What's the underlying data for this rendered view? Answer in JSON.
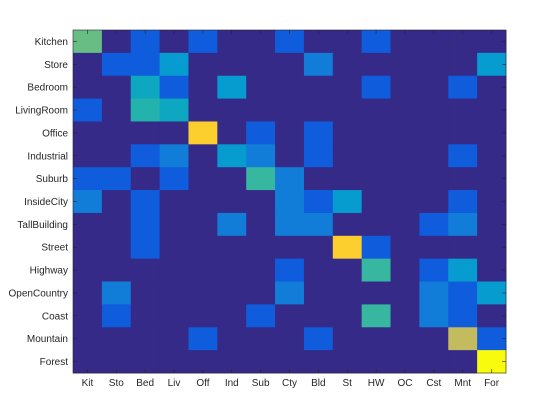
{
  "chart_data": {
    "type": "heatmap",
    "colormap": "parula",
    "value_range": [
      0,
      1
    ],
    "grid": false,
    "x_tick_labels": [
      "Kit",
      "Sto",
      "Bed",
      "Liv",
      "Off",
      "Ind",
      "Sub",
      "Cty",
      "Bld",
      "St",
      "HW",
      "OC",
      "Cst",
      "Mnt",
      "For"
    ],
    "y_tick_labels": [
      "Kitchen",
      "Store",
      "Bedroom",
      "LivingRoom",
      "Office",
      "Industrial",
      "Suburb",
      "InsideCity",
      "TallBuilding",
      "Street",
      "Highway",
      "OpenCountry",
      "Coast",
      "Mountain",
      "Forest"
    ],
    "matrix": [
      [
        0.52,
        0,
        0.1,
        0,
        0.1,
        0,
        0,
        0.1,
        0,
        0,
        0.1,
        0,
        0,
        0,
        0
      ],
      [
        0,
        0.1,
        0.1,
        0.3,
        0,
        0,
        0,
        0,
        0.2,
        0,
        0,
        0,
        0,
        0,
        0.3
      ],
      [
        0,
        0,
        0.35,
        0.1,
        0,
        0.3,
        0,
        0,
        0,
        0,
        0.1,
        0,
        0,
        0.1,
        0
      ],
      [
        0.1,
        0,
        0.42,
        0.35,
        0,
        0,
        0,
        0,
        0,
        0,
        0,
        0,
        0,
        0,
        0
      ],
      [
        0,
        0,
        0,
        0,
        0.8,
        0,
        0.1,
        0,
        0.1,
        0,
        0,
        0,
        0,
        0,
        0
      ],
      [
        0,
        0,
        0.1,
        0.2,
        0,
        0.3,
        0.2,
        0,
        0.1,
        0,
        0,
        0,
        0,
        0.1,
        0
      ],
      [
        0.1,
        0.1,
        0,
        0.1,
        0,
        0,
        0.45,
        0.2,
        0,
        0,
        0,
        0,
        0,
        0,
        0
      ],
      [
        0.2,
        0,
        0.1,
        0,
        0,
        0,
        0,
        0.2,
        0.1,
        0.3,
        0,
        0,
        0,
        0.1,
        0
      ],
      [
        0,
        0,
        0.1,
        0,
        0,
        0.2,
        0,
        0.2,
        0.2,
        0,
        0,
        0,
        0.1,
        0.2,
        0
      ],
      [
        0,
        0,
        0.1,
        0,
        0,
        0,
        0,
        0,
        0,
        0.8,
        0.1,
        0,
        0,
        0,
        0
      ],
      [
        0,
        0,
        0,
        0,
        0,
        0,
        0,
        0.1,
        0,
        0,
        0.45,
        0,
        0.1,
        0.3,
        0
      ],
      [
        0,
        0.2,
        0,
        0,
        0,
        0,
        0,
        0.2,
        0,
        0,
        0,
        0,
        0.2,
        0.1,
        0.3
      ],
      [
        0,
        0.1,
        0,
        0,
        0,
        0,
        0.1,
        0,
        0,
        0,
        0.45,
        0,
        0.2,
        0.1,
        0
      ],
      [
        0,
        0,
        0,
        0,
        0.1,
        0,
        0,
        0,
        0.1,
        0,
        0,
        0,
        0,
        0.65,
        0.1
      ],
      [
        0,
        0,
        0,
        0,
        0,
        0,
        0,
        0,
        0,
        0,
        0,
        0,
        0,
        0,
        1.0
      ]
    ]
  }
}
